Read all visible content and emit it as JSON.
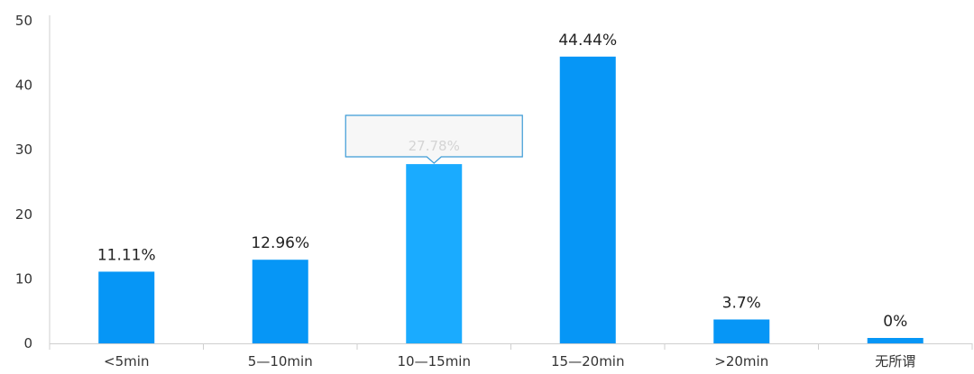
{
  "chart_data": {
    "type": "bar",
    "categories": [
      "<5min",
      "5—10min",
      "10—15min",
      "15—20min",
      ">20min",
      "无所谓"
    ],
    "values": [
      11.11,
      12.96,
      27.78,
      44.44,
      3.7,
      0
    ],
    "data_labels": [
      "11.11%",
      "12.96%",
      "27.78%",
      "44.44%",
      "3.7%",
      "0%"
    ],
    "ylim": [
      0,
      50
    ],
    "yticks": [
      0,
      10,
      20,
      30,
      40,
      50
    ],
    "title": "",
    "xlabel": "",
    "ylabel": "",
    "grid": false,
    "legend": "none",
    "highlighted_index": 2,
    "tooltip": {
      "category": "10—15min",
      "text": "27.78%"
    },
    "colors": {
      "bar": "#0696f6",
      "bar_highlight": "#1aabff",
      "axis": "#cfcfcf",
      "tooltip_border": "#3c9bd6"
    }
  }
}
